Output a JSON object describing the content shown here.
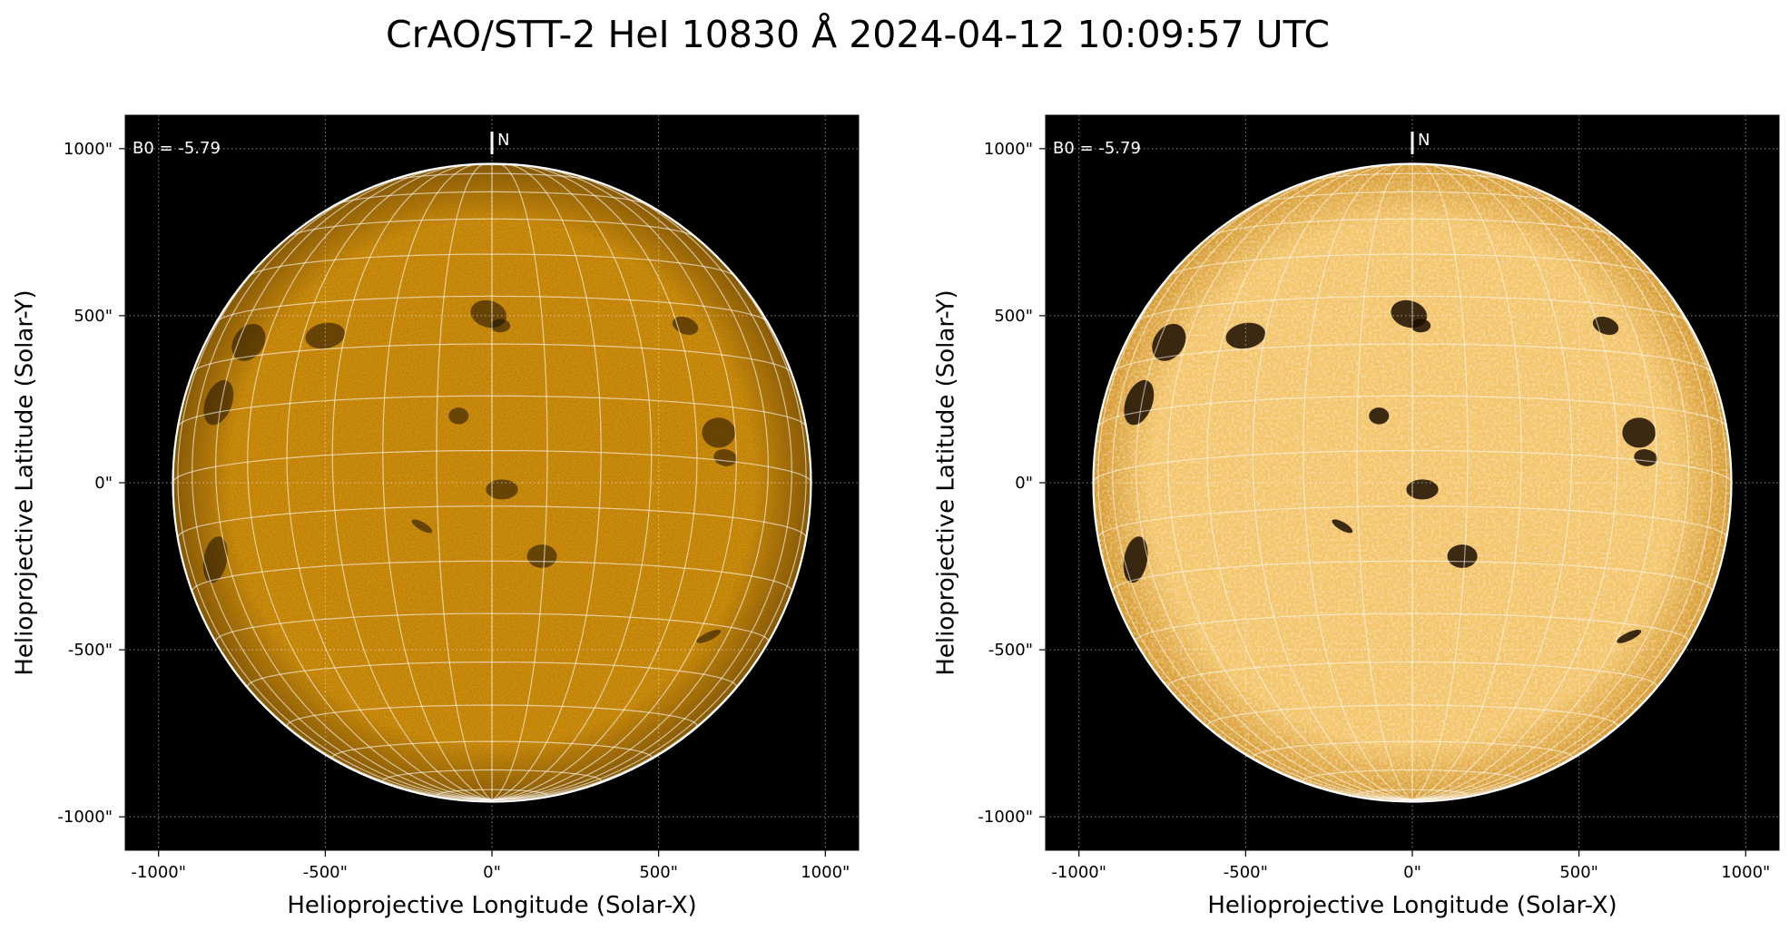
{
  "figure": {
    "title": "CrAO/STT-2 HeI 10830 Å 2024-04-12 10:09:57 UTC"
  },
  "panels": [
    {
      "id": "left",
      "processing": "standard",
      "annotations": {
        "b0_label": "B0 = -5.79",
        "north_label": "N"
      },
      "x_axis": {
        "label": "Helioprojective Longitude (Solar-X)",
        "ticks": [
          "-1000\"",
          "-500\"",
          "0\"",
          "500\"",
          "1000\""
        ]
      },
      "y_axis": {
        "label": "Helioprojective Latitude (Solar-Y)",
        "ticks": [
          "1000\"",
          "500\"",
          "0\"",
          "-500\"",
          "-1000\""
        ]
      },
      "colors": {
        "disk_center": "#d8930e",
        "disk_edge": "#8a5a08",
        "limb": "#ffffff",
        "background": "#000000"
      }
    },
    {
      "id": "right",
      "processing": "enhanced",
      "annotations": {
        "b0_label": "B0 = -5.79",
        "north_label": "N"
      },
      "x_axis": {
        "label": "Helioprojective Longitude (Solar-X)",
        "ticks": [
          "-1000\"",
          "-500\"",
          "0\"",
          "500\"",
          "1000\""
        ]
      },
      "y_axis": {
        "label": "Helioprojective Latitude (Solar-Y)",
        "ticks": [
          "1000\"",
          "500\"",
          "0\"",
          "-500\"",
          "-1000\""
        ]
      },
      "colors": {
        "disk_center": "#f3c46a",
        "disk_edge": "#d4982e",
        "limb": "#ffffff",
        "background": "#000000"
      }
    }
  ],
  "chart_data": {
    "type": "image",
    "coordinate_frame": "helioprojective",
    "units": "arcsec",
    "axis_range": [
      -1100,
      1100
    ],
    "tick_values": [
      -1000,
      -500,
      0,
      500,
      1000
    ],
    "solar_radius_arcsec": 957,
    "grid": true
  }
}
